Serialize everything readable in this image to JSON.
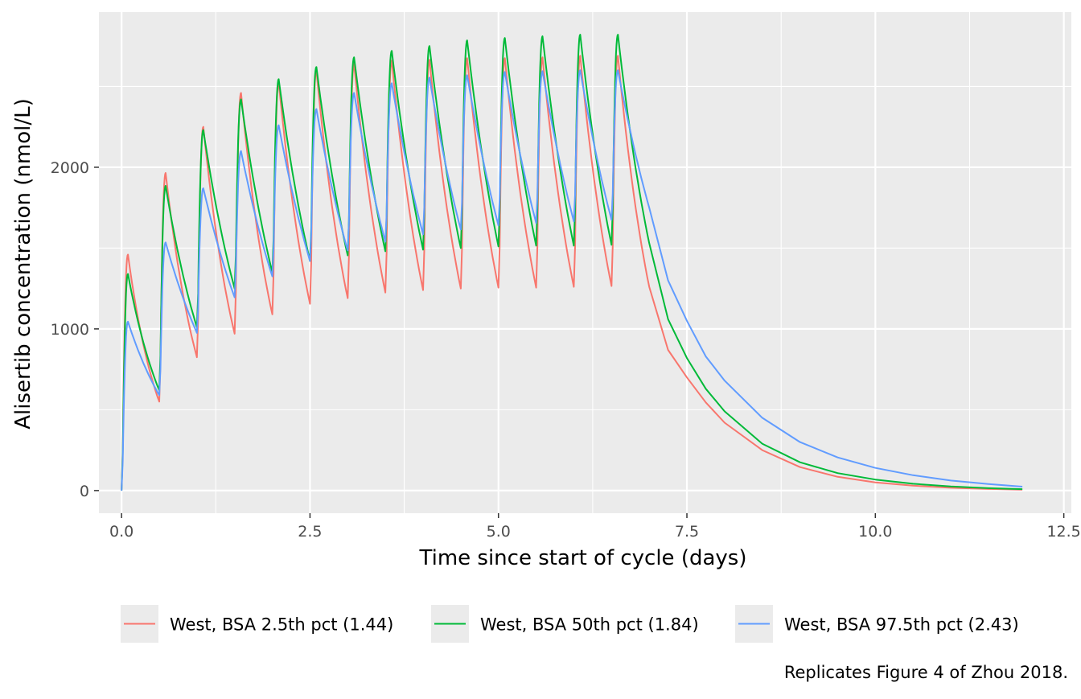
{
  "chart_data": {
    "type": "line",
    "title": "",
    "xlabel": "Time since start of cycle (days)",
    "ylabel": "Alisertib concentration (nmol/L)",
    "caption": "Replicates Figure 4 of Zhou 2018.",
    "xlim": [
      -0.3,
      12.6
    ],
    "ylim": [
      -140,
      2960
    ],
    "xticks": [
      0,
      2.5,
      5,
      7.5,
      10,
      12.5
    ],
    "xtick_labels": [
      "0.0",
      "2.5",
      "5.0",
      "7.5",
      "10.0",
      "12.5"
    ],
    "yticks": [
      0,
      1000,
      2000
    ],
    "ytick_labels": [
      "0",
      "1000",
      "2000"
    ],
    "x_minor_ticks": [
      1.25,
      3.75,
      6.25,
      8.75,
      11.25
    ],
    "y_minor_ticks": [
      500,
      1500,
      2500
    ],
    "grid": true,
    "legend_position": "bottom",
    "panel_color": "#ebebeb",
    "series": [
      {
        "name": "West, BSA 2.5th pct (1.44)",
        "color": "#f8766d",
        "troughs": [
          0,
          550,
          825,
          970,
          1090,
          1155,
          1190,
          1225,
          1240,
          1250,
          1255,
          1255,
          1260,
          1265
        ],
        "peaks": [
          1460,
          1965,
          2250,
          2460,
          2525,
          2600,
          2640,
          2660,
          2665,
          2675,
          2675,
          2680,
          2690,
          2690
        ],
        "washout": [
          [
            7.0,
            1260
          ],
          [
            7.25,
            870
          ],
          [
            7.5,
            700
          ],
          [
            7.75,
            545
          ],
          [
            8.0,
            420
          ],
          [
            8.5,
            250
          ],
          [
            9.0,
            145
          ],
          [
            9.5,
            85
          ],
          [
            10.0,
            50
          ],
          [
            10.5,
            30
          ],
          [
            11.0,
            17
          ],
          [
            11.5,
            10
          ],
          [
            11.95,
            6
          ]
        ]
      },
      {
        "name": "West, BSA 50th pct (1.84)",
        "color": "#00ba38",
        "troughs": [
          0,
          620,
          1010,
          1250,
          1350,
          1420,
          1455,
          1480,
          1490,
          1500,
          1510,
          1515,
          1515,
          1520
        ],
        "peaks": [
          1340,
          1885,
          2230,
          2420,
          2545,
          2620,
          2680,
          2720,
          2750,
          2785,
          2800,
          2810,
          2820,
          2820
        ],
        "washout": [
          [
            7.0,
            1530
          ],
          [
            7.25,
            1060
          ],
          [
            7.5,
            820
          ],
          [
            7.75,
            630
          ],
          [
            8.0,
            490
          ],
          [
            8.5,
            290
          ],
          [
            9.0,
            175
          ],
          [
            9.5,
            108
          ],
          [
            10.0,
            68
          ],
          [
            10.5,
            42
          ],
          [
            11.0,
            25
          ],
          [
            11.5,
            15
          ],
          [
            11.95,
            9
          ]
        ]
      },
      {
        "name": "West, BSA 97.5th pct (2.43)",
        "color": "#619cff",
        "troughs": [
          0,
          590,
          975,
          1195,
          1325,
          1420,
          1485,
          1540,
          1585,
          1615,
          1640,
          1655,
          1665,
          1675
        ],
        "peaks": [
          1045,
          1535,
          1870,
          2100,
          2260,
          2360,
          2460,
          2520,
          2555,
          2570,
          2590,
          2595,
          2600,
          2600
        ],
        "washout": [
          [
            7.0,
            1750
          ],
          [
            7.25,
            1300
          ],
          [
            7.5,
            1050
          ],
          [
            7.75,
            830
          ],
          [
            8.0,
            680
          ],
          [
            8.5,
            450
          ],
          [
            9.0,
            300
          ],
          [
            9.5,
            205
          ],
          [
            10.0,
            140
          ],
          [
            10.5,
            95
          ],
          [
            11.0,
            62
          ],
          [
            11.5,
            40
          ],
          [
            11.95,
            24
          ]
        ]
      }
    ]
  }
}
